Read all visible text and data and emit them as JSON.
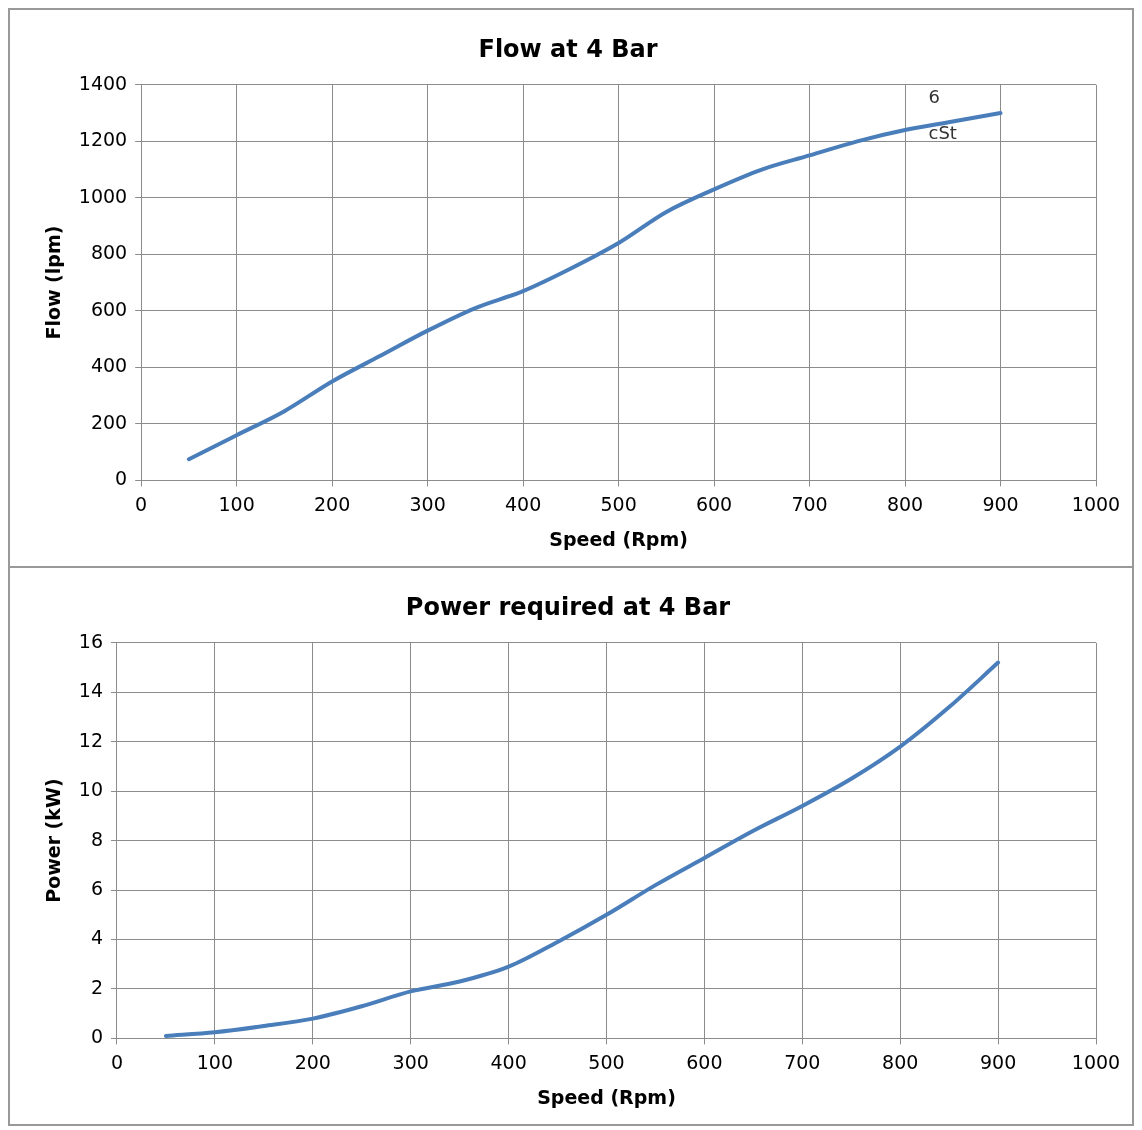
{
  "chart_data": [
    {
      "type": "line",
      "title": "Flow at 4 Bar",
      "xlabel": "Speed (Rpm)",
      "ylabel": "Flow (lpm)",
      "xlim": [
        0,
        1000
      ],
      "xticks": [
        0,
        100,
        200,
        300,
        400,
        500,
        600,
        700,
        800,
        900,
        1000
      ],
      "ylim": [
        0,
        1400
      ],
      "yticks": [
        0,
        200,
        400,
        600,
        800,
        1000,
        1200,
        1400
      ],
      "grid": true,
      "marker": "none",
      "series": [
        {
          "name": "6 cSt",
          "color": "#4a7ebb",
          "x": [
            50,
            100,
            150,
            200,
            250,
            300,
            350,
            400,
            450,
            500,
            550,
            600,
            650,
            700,
            750,
            800,
            850,
            900
          ],
          "values": [
            75,
            160,
            245,
            350,
            440,
            530,
            610,
            670,
            750,
            840,
            950,
            1030,
            1100,
            1150,
            1200,
            1240,
            1270,
            1300
          ]
        }
      ]
    },
    {
      "type": "line",
      "title": "Power required at 4 Bar",
      "xlabel": "Speed (Rpm)",
      "ylabel": "Power (kW)",
      "xlim": [
        0,
        1000
      ],
      "xticks": [
        0,
        100,
        200,
        300,
        400,
        500,
        600,
        700,
        800,
        900,
        1000
      ],
      "ylim": [
        0,
        16
      ],
      "yticks": [
        0,
        2,
        4,
        6,
        8,
        10,
        12,
        14,
        16
      ],
      "grid": true,
      "marker": "none",
      "series": [
        {
          "color": "#4a7ebb",
          "x": [
            50,
            100,
            150,
            200,
            250,
            300,
            350,
            400,
            450,
            500,
            550,
            600,
            650,
            700,
            750,
            800,
            850,
            900
          ],
          "values": [
            0.1,
            0.25,
            0.5,
            0.8,
            1.3,
            1.9,
            2.3,
            2.9,
            3.9,
            5.0,
            6.2,
            7.3,
            8.4,
            9.4,
            10.5,
            11.8,
            13.4,
            15.2
          ]
        }
      ]
    }
  ]
}
